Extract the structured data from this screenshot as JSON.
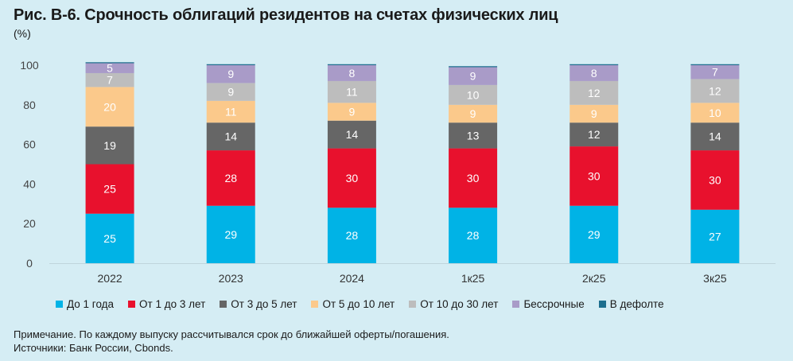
{
  "header": {
    "title": "Рис. В-6. Срочность облигаций резидентов на счетах физических лиц",
    "unit": "(%)"
  },
  "footer": {
    "note": "Примечание. По каждому выпуску рассчитывался срок до ближайшей оферты/погашения.",
    "sources": "Источники: Банк России, Cbonds."
  },
  "chart_data": {
    "type": "bar",
    "stacked": true,
    "title": "Рис. В-6. Срочность облигаций резидентов на счетах физических лиц",
    "ylabel": "(%)",
    "xlabel": "",
    "ylim": [
      0,
      100
    ],
    "yticks": [
      0,
      20,
      40,
      60,
      80,
      100
    ],
    "grid": false,
    "legend_position": "bottom",
    "categories": [
      "2022",
      "2023",
      "2024",
      "1к25",
      "2к25",
      "3к25"
    ],
    "series": [
      {
        "name": "До 1 года",
        "color": "#00b3e6",
        "values": [
          25,
          29,
          28,
          28,
          29,
          27
        ]
      },
      {
        "name": "От 1 до 3 лет",
        "color": "#e8112d",
        "values": [
          25,
          28,
          30,
          30,
          30,
          30
        ]
      },
      {
        "name": "От 3 до 5 лет",
        "color": "#666666",
        "values": [
          19,
          14,
          14,
          13,
          12,
          14
        ]
      },
      {
        "name": "От 5 до 10 лет",
        "color": "#fbc98b",
        "values": [
          20,
          11,
          9,
          9,
          9,
          10
        ]
      },
      {
        "name": "От 10 до 30 лет",
        "color": "#bdbdbd",
        "values": [
          7,
          9,
          11,
          10,
          12,
          12
        ]
      },
      {
        "name": "Бессрочные",
        "color": "#a99bc8",
        "values": [
          5,
          9,
          8,
          9,
          8,
          7
        ]
      },
      {
        "name": "В дефолте",
        "color": "#1d6f8e",
        "values": [
          0.5,
          0.5,
          0.5,
          0.5,
          0.5,
          0.5
        ]
      }
    ],
    "labels": [
      [
        "25",
        "29",
        "28",
        "28",
        "29",
        "27"
      ],
      [
        "25",
        "28",
        "30",
        "30",
        "30",
        "30"
      ],
      [
        "19",
        "14",
        "14",
        "13",
        "12",
        "14"
      ],
      [
        "20",
        "11",
        "9",
        "9",
        "9",
        "10"
      ],
      [
        "7",
        "9",
        "11",
        "10",
        "12",
        "12"
      ],
      [
        "5",
        "9",
        "8",
        "9",
        "8",
        "7"
      ],
      [
        "",
        "",
        "",
        "",
        "",
        ""
      ]
    ]
  }
}
